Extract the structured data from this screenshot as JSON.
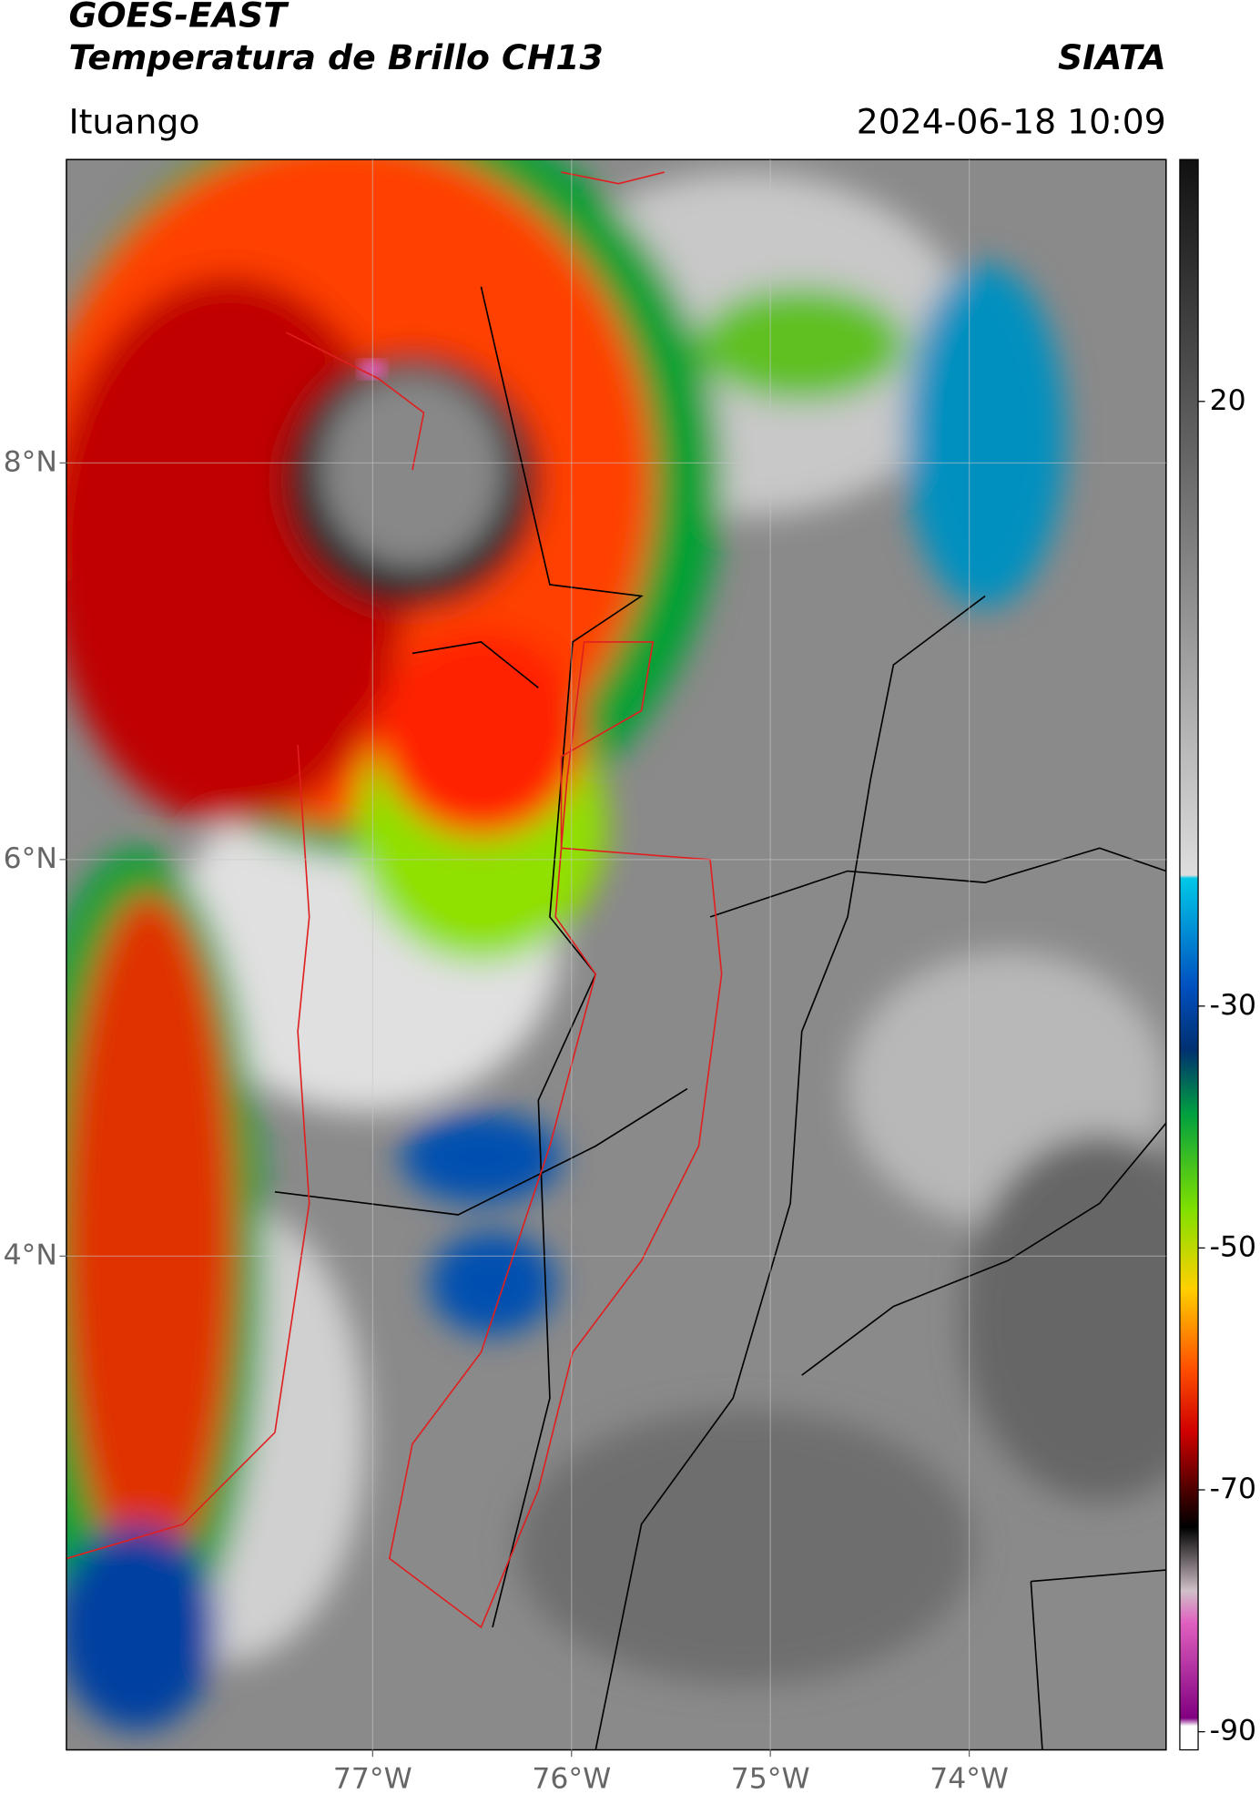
{
  "header": {
    "title": "GOES-EAST",
    "subtitle": "Temperatura de Brillo CH13",
    "brand": "SIATA",
    "location": "Ituango",
    "datetime": "2024-06-18 10:09"
  },
  "map": {
    "xlim": [
      -78.54,
      -73.01
    ],
    "ylim": [
      1.51,
      9.53
    ],
    "xticks": [
      {
        "value": -77,
        "label": "77°W"
      },
      {
        "value": -76,
        "label": "76°W"
      },
      {
        "value": -75,
        "label": "75°W"
      },
      {
        "value": -74,
        "label": "74°W"
      }
    ],
    "yticks": [
      {
        "value": 8,
        "label": "8°N"
      },
      {
        "value": 6,
        "label": "6°N"
      },
      {
        "value": 4,
        "label": "4°N"
      }
    ],
    "grid": true
  },
  "colorbar": {
    "clim": [
      -91.5,
      40
    ],
    "ticks": [
      20,
      -30,
      -50,
      -70,
      -90
    ]
  }
}
